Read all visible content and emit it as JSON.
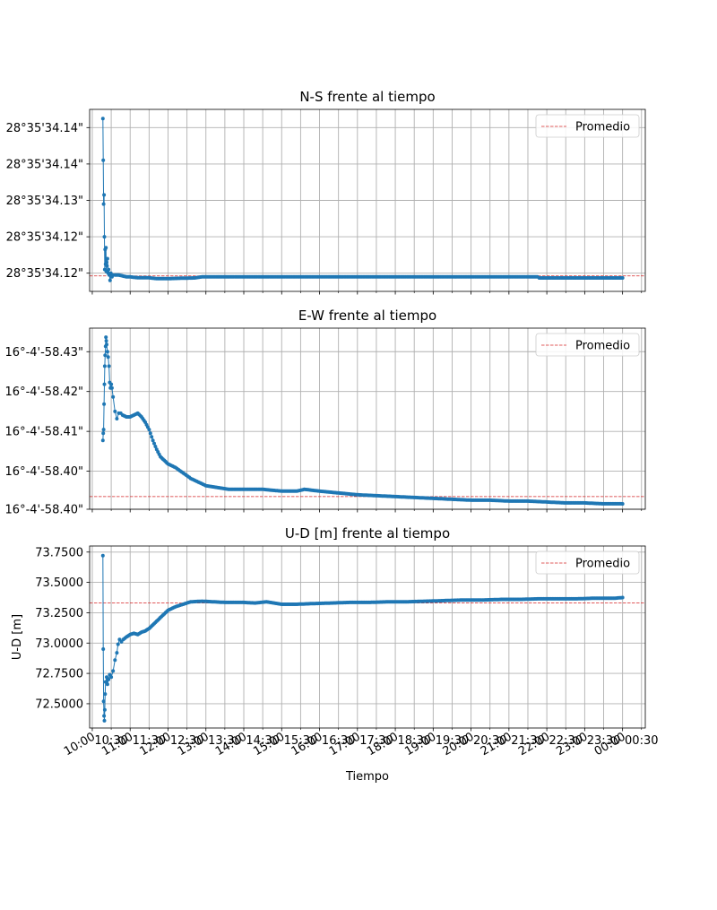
{
  "colors": {
    "series": "#1f77b4",
    "mean_line": "#d62728",
    "grid": "#b0b0b0"
  },
  "xaxis": {
    "label": "Tiempo",
    "range_hours": [
      9.93,
      24.6
    ],
    "major_ticks": [
      {
        "t": 10.0,
        "label": "10:00"
      },
      {
        "t": 11.0,
        "label": "11:00"
      },
      {
        "t": 12.0,
        "label": "12:00"
      },
      {
        "t": 13.0,
        "label": "13:00"
      },
      {
        "t": 14.0,
        "label": "14:00"
      },
      {
        "t": 15.0,
        "label": "15:00"
      },
      {
        "t": 16.0,
        "label": "16:00"
      },
      {
        "t": 17.0,
        "label": "17:00"
      },
      {
        "t": 18.0,
        "label": "18:00"
      },
      {
        "t": 19.0,
        "label": "19:00"
      },
      {
        "t": 20.0,
        "label": "20:00"
      },
      {
        "t": 21.0,
        "label": "21:00"
      },
      {
        "t": 22.0,
        "label": "22:00"
      },
      {
        "t": 23.0,
        "label": "23:00"
      },
      {
        "t": 24.0,
        "label": "00:00"
      }
    ],
    "minor_ticks": [
      {
        "t": 10.5,
        "label": "10:30"
      },
      {
        "t": 11.5,
        "label": "11:30"
      },
      {
        "t": 12.5,
        "label": "12:30"
      },
      {
        "t": 13.5,
        "label": "13:30"
      },
      {
        "t": 14.5,
        "label": "14:30"
      },
      {
        "t": 15.5,
        "label": "15:30"
      },
      {
        "t": 16.5,
        "label": "16:30"
      },
      {
        "t": 17.5,
        "label": "17:30"
      },
      {
        "t": 18.5,
        "label": "18:30"
      },
      {
        "t": 19.5,
        "label": "19:30"
      },
      {
        "t": 20.5,
        "label": "20:30"
      },
      {
        "t": 21.5,
        "label": "21:30"
      },
      {
        "t": 22.5,
        "label": "22:30"
      },
      {
        "t": 23.5,
        "label": "23:30"
      },
      {
        "t": 24.5,
        "label": "00:30"
      }
    ]
  },
  "chart_data": [
    {
      "type": "line",
      "title": "N-S frente al tiempo",
      "ylabel": "",
      "legend": "Promedio",
      "legend_position": "top-right",
      "grid": true,
      "ylim": [
        0,
        1
      ],
      "yticks": [
        {
          "v": 0.9,
          "label": "28°35'34.14\""
        },
        {
          "v": 0.7,
          "label": "28°35'34.14\""
        },
        {
          "v": 0.5,
          "label": "28°35'34.13\""
        },
        {
          "v": 0.3,
          "label": "28°35'34.12\""
        },
        {
          "v": 0.1,
          "label": "28°35'34.12\""
        }
      ],
      "mean": 0.085,
      "points": [
        [
          10.28,
          0.95
        ],
        [
          10.29,
          0.72
        ],
        [
          10.3,
          0.48
        ],
        [
          10.31,
          0.53
        ],
        [
          10.32,
          0.3
        ],
        [
          10.33,
          0.12
        ],
        [
          10.34,
          0.23
        ],
        [
          10.35,
          0.15
        ],
        [
          10.36,
          0.24
        ],
        [
          10.37,
          0.11
        ],
        [
          10.38,
          0.16
        ],
        [
          10.39,
          0.14
        ],
        [
          10.4,
          0.18
        ],
        [
          10.42,
          0.1
        ],
        [
          10.43,
          0.12
        ],
        [
          10.45,
          0.09
        ],
        [
          10.47,
          0.06
        ],
        [
          10.49,
          0.1
        ],
        [
          10.52,
          0.08
        ],
        [
          10.55,
          0.09
        ],
        [
          10.6,
          0.09
        ],
        [
          10.7,
          0.09
        ],
        [
          10.8,
          0.085
        ],
        [
          10.9,
          0.08
        ],
        [
          11.0,
          0.08
        ],
        [
          11.2,
          0.075
        ],
        [
          11.5,
          0.075
        ],
        [
          11.7,
          0.07
        ],
        [
          12.0,
          0.07
        ],
        [
          12.3,
          0.072
        ],
        [
          12.7,
          0.074
        ],
        [
          12.9,
          0.08
        ],
        [
          13.5,
          0.08
        ],
        [
          14.5,
          0.08
        ],
        [
          15.5,
          0.08
        ],
        [
          16.5,
          0.08
        ],
        [
          17.5,
          0.08
        ],
        [
          18.5,
          0.08
        ],
        [
          19.5,
          0.08
        ],
        [
          20.5,
          0.08
        ],
        [
          21.5,
          0.08
        ],
        [
          21.75,
          0.08
        ],
        [
          21.8,
          0.074
        ],
        [
          22.5,
          0.074
        ],
        [
          23.5,
          0.074
        ],
        [
          24.0,
          0.074
        ]
      ]
    },
    {
      "type": "line",
      "title": "E-W frente al tiempo",
      "ylabel": "",
      "legend": "Promedio",
      "legend_position": "top-right",
      "grid": true,
      "ylim": [
        0,
        1
      ],
      "yticks": [
        {
          "v": 0.87,
          "label": "16°-4'-58.43\""
        },
        {
          "v": 0.65,
          "label": "16°-4'-58.42\""
        },
        {
          "v": 0.43,
          "label": "16°-4'-58.41\""
        },
        {
          "v": 0.21,
          "label": "16°-4'-58.40\""
        },
        {
          "v": 0.0,
          "label": "16°-4'-58.40\""
        }
      ],
      "mean": 0.07,
      "points": [
        [
          10.28,
          0.38
        ],
        [
          10.29,
          0.42
        ],
        [
          10.3,
          0.44
        ],
        [
          10.31,
          0.58
        ],
        [
          10.32,
          0.69
        ],
        [
          10.33,
          0.79
        ],
        [
          10.34,
          0.85
        ],
        [
          10.35,
          0.9
        ],
        [
          10.36,
          0.95
        ],
        [
          10.37,
          0.93
        ],
        [
          10.38,
          0.91
        ],
        [
          10.4,
          0.87
        ],
        [
          10.42,
          0.84
        ],
        [
          10.44,
          0.79
        ],
        [
          10.46,
          0.7
        ],
        [
          10.48,
          0.67
        ],
        [
          10.5,
          0.69
        ],
        [
          10.52,
          0.67
        ],
        [
          10.55,
          0.62
        ],
        [
          10.6,
          0.54
        ],
        [
          10.65,
          0.5
        ],
        [
          10.7,
          0.53
        ],
        [
          10.75,
          0.53
        ],
        [
          10.8,
          0.52
        ],
        [
          10.9,
          0.51
        ],
        [
          11.0,
          0.51
        ],
        [
          11.1,
          0.52
        ],
        [
          11.2,
          0.53
        ],
        [
          11.3,
          0.51
        ],
        [
          11.4,
          0.48
        ],
        [
          11.5,
          0.44
        ],
        [
          11.6,
          0.38
        ],
        [
          11.7,
          0.33
        ],
        [
          11.8,
          0.29
        ],
        [
          11.9,
          0.27
        ],
        [
          12.0,
          0.25
        ],
        [
          12.2,
          0.23
        ],
        [
          12.4,
          0.2
        ],
        [
          12.6,
          0.17
        ],
        [
          12.8,
          0.15
        ],
        [
          13.0,
          0.13
        ],
        [
          13.3,
          0.12
        ],
        [
          13.6,
          0.11
        ],
        [
          14.0,
          0.11
        ],
        [
          14.5,
          0.11
        ],
        [
          15.0,
          0.1
        ],
        [
          15.4,
          0.1
        ],
        [
          15.6,
          0.11
        ],
        [
          16.0,
          0.1
        ],
        [
          16.5,
          0.09
        ],
        [
          17.0,
          0.08
        ],
        [
          17.5,
          0.075
        ],
        [
          18.0,
          0.07
        ],
        [
          18.5,
          0.065
        ],
        [
          19.0,
          0.06
        ],
        [
          19.5,
          0.055
        ],
        [
          20.0,
          0.05
        ],
        [
          20.5,
          0.05
        ],
        [
          21.0,
          0.045
        ],
        [
          21.5,
          0.045
        ],
        [
          22.0,
          0.04
        ],
        [
          22.5,
          0.035
        ],
        [
          23.0,
          0.035
        ],
        [
          23.5,
          0.03
        ],
        [
          24.0,
          0.03
        ]
      ]
    },
    {
      "type": "line",
      "title": "U-D [m] frente al tiempo",
      "ylabel": "U-D [m]",
      "legend": "Promedio",
      "legend_position": "top-right",
      "grid": true,
      "ylim": [
        72.3,
        73.8
      ],
      "yticks": [
        {
          "v": 72.5,
          "label": "72.5000"
        },
        {
          "v": 72.75,
          "label": "72.7500"
        },
        {
          "v": 73.0,
          "label": "73.0000"
        },
        {
          "v": 73.25,
          "label": "73.2500"
        },
        {
          "v": 73.5,
          "label": "73.5000"
        },
        {
          "v": 73.75,
          "label": "73.7500"
        }
      ],
      "mean": 73.33,
      "points": [
        [
          10.28,
          73.72
        ],
        [
          10.29,
          72.95
        ],
        [
          10.3,
          72.52
        ],
        [
          10.31,
          72.4
        ],
        [
          10.32,
          72.36
        ],
        [
          10.33,
          72.45
        ],
        [
          10.34,
          72.58
        ],
        [
          10.35,
          72.68
        ],
        [
          10.38,
          72.72
        ],
        [
          10.4,
          72.66
        ],
        [
          10.43,
          72.7
        ],
        [
          10.46,
          72.74
        ],
        [
          10.5,
          72.72
        ],
        [
          10.55,
          72.77
        ],
        [
          10.6,
          72.86
        ],
        [
          10.65,
          72.92
        ],
        [
          10.68,
          72.99
        ],
        [
          10.72,
          73.03
        ],
        [
          10.77,
          73.01
        ],
        [
          10.82,
          73.03
        ],
        [
          10.9,
          73.05
        ],
        [
          11.0,
          73.07
        ],
        [
          11.1,
          73.08
        ],
        [
          11.2,
          73.07
        ],
        [
          11.3,
          73.09
        ],
        [
          11.4,
          73.1
        ],
        [
          11.5,
          73.12
        ],
        [
          11.6,
          73.15
        ],
        [
          11.7,
          73.18
        ],
        [
          11.8,
          73.21
        ],
        [
          11.9,
          73.24
        ],
        [
          12.0,
          73.27
        ],
        [
          12.2,
          73.3
        ],
        [
          12.4,
          73.32
        ],
        [
          12.6,
          73.34
        ],
        [
          12.9,
          73.345
        ],
        [
          13.2,
          73.34
        ],
        [
          13.5,
          73.335
        ],
        [
          14.0,
          73.335
        ],
        [
          14.3,
          73.33
        ],
        [
          14.6,
          73.34
        ],
        [
          15.0,
          73.32
        ],
        [
          15.4,
          73.32
        ],
        [
          15.8,
          73.325
        ],
        [
          16.3,
          73.33
        ],
        [
          16.8,
          73.335
        ],
        [
          17.3,
          73.335
        ],
        [
          17.8,
          73.34
        ],
        [
          18.3,
          73.34
        ],
        [
          18.8,
          73.345
        ],
        [
          19.3,
          73.35
        ],
        [
          19.8,
          73.355
        ],
        [
          20.3,
          73.355
        ],
        [
          20.8,
          73.36
        ],
        [
          21.3,
          73.36
        ],
        [
          21.8,
          73.365
        ],
        [
          22.3,
          73.365
        ],
        [
          22.8,
          73.365
        ],
        [
          23.3,
          73.37
        ],
        [
          23.8,
          73.37
        ],
        [
          24.0,
          73.375
        ]
      ]
    }
  ]
}
